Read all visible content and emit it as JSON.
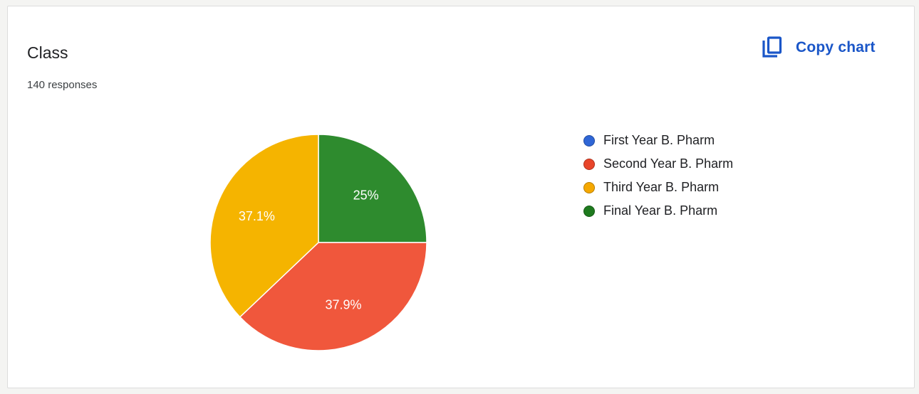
{
  "card": {
    "title": "Class",
    "subtitle": "140 responses",
    "copy_label": "Copy chart",
    "copy_icon": "copy-icon"
  },
  "chart_data": {
    "type": "pie",
    "title": "Class",
    "subtitle": "140 responses",
    "legend_position": "right",
    "start_angle_deg": 0,
    "direction": "clockwise",
    "slices": [
      {
        "label": "First Year B. Pharm",
        "value": 0,
        "display": "",
        "color": "#3366cc"
      },
      {
        "label": "Final Year B. Pharm",
        "value": 25,
        "display": "25%",
        "color": "#2e8b2e"
      },
      {
        "label": "Second Year B. Pharm",
        "value": 37.9,
        "display": "37.9%",
        "color": "#f0573c"
      },
      {
        "label": "Third Year B. Pharm",
        "value": 37.1,
        "display": "37.1%",
        "color": "#f5b400"
      }
    ],
    "legend": [
      {
        "label": "First Year B. Pharm",
        "color": "#2f66d6"
      },
      {
        "label": "Second Year B. Pharm",
        "color": "#e8452a"
      },
      {
        "label": "Third Year B. Pharm",
        "color": "#f5a800"
      },
      {
        "label": "Final Year B. Pharm",
        "color": "#1e7a1e"
      }
    ]
  }
}
